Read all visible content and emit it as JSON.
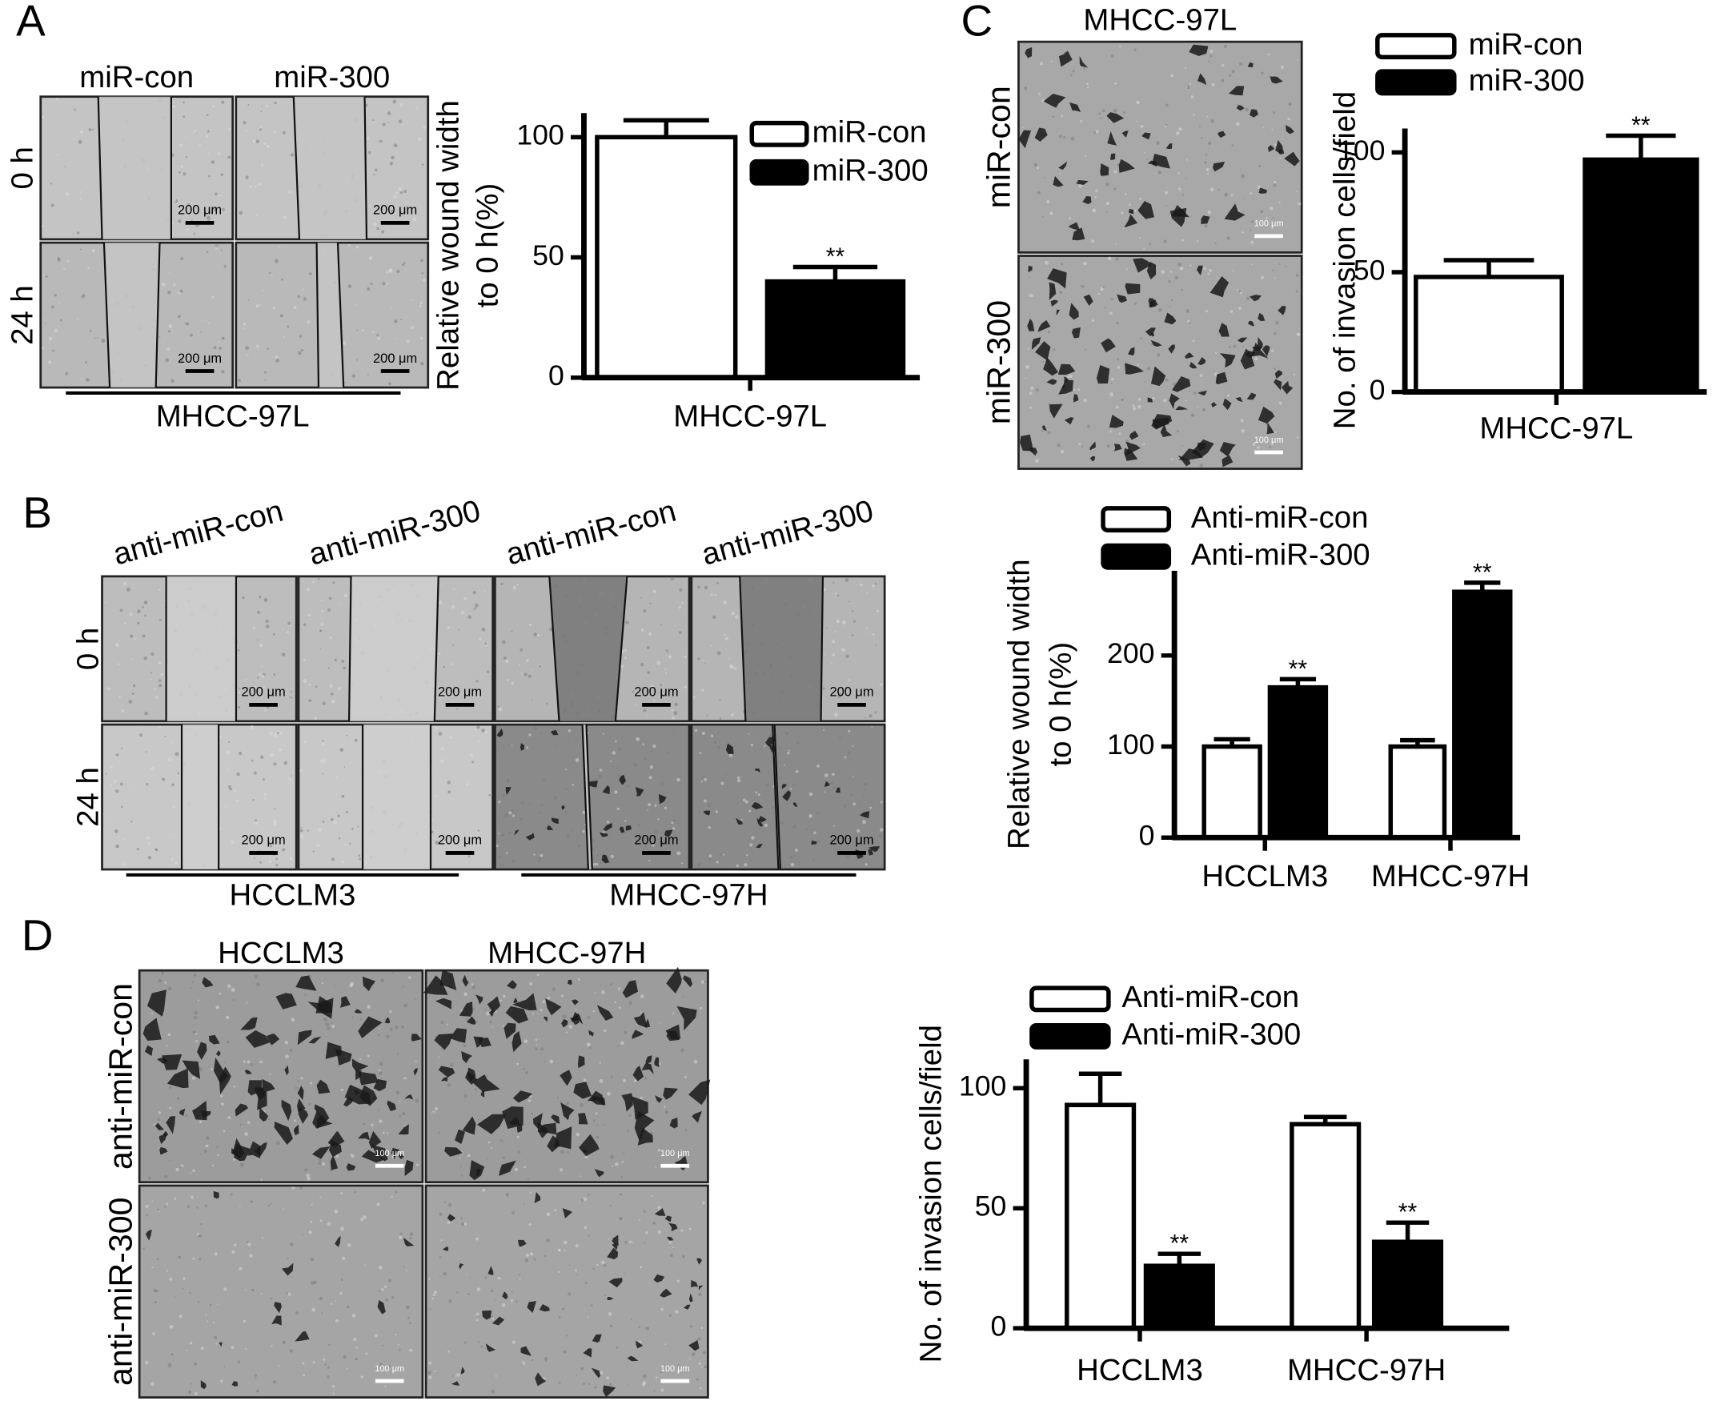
{
  "figure": {
    "panel_labels": [
      "A",
      "B",
      "C",
      "D"
    ],
    "A": {
      "columns": [
        "miR-con",
        "miR-300"
      ],
      "rows": [
        "0 h",
        "24 h"
      ],
      "cell_line": "MHCC-97L",
      "scale": "200 μm"
    },
    "B": {
      "columns": [
        "anti-miR-con",
        "anti-miR-300",
        "anti-miR-con",
        "anti-miR-300"
      ],
      "rows": [
        "0 h",
        "24 h"
      ],
      "cell_lines": [
        "HCCLM3",
        "MHCC-97H"
      ],
      "scale": "200 μm"
    },
    "C": {
      "title": "MHCC-97L",
      "rows": [
        "miR-con",
        "miR-300"
      ],
      "scale": "100 μm"
    },
    "D": {
      "columns": [
        "HCCLM3",
        "MHCC-97H"
      ],
      "rows": [
        "anti-miR-con",
        "anti-miR-300"
      ],
      "scale": "100 μm"
    }
  },
  "chart_data": [
    {
      "type": "bar",
      "ylabel": [
        "Relative wound width",
        "to 0 h(%)"
      ],
      "categories": [
        "MHCC-97L"
      ],
      "series": [
        {
          "name": "miR-con",
          "color": "#ffffff",
          "values": [
            100
          ],
          "errors": [
            7
          ]
        },
        {
          "name": "miR-300",
          "color": "#000000",
          "values": [
            40
          ],
          "errors": [
            6
          ],
          "annotations": [
            "**"
          ]
        }
      ],
      "ylim": [
        0,
        110
      ],
      "yticks": [
        0,
        50,
        100
      ]
    },
    {
      "type": "bar",
      "ylabel": [
        "No. of invasion cells/field"
      ],
      "categories": [
        "MHCC-97L"
      ],
      "series": [
        {
          "name": "miR-con",
          "color": "#ffffff",
          "values": [
            48
          ],
          "errors": [
            7
          ]
        },
        {
          "name": "miR-300",
          "color": "#000000",
          "values": [
            97
          ],
          "errors": [
            10
          ],
          "annotations": [
            "**"
          ]
        }
      ],
      "ylim": [
        0,
        110
      ],
      "yticks": [
        0,
        50,
        100
      ]
    },
    {
      "type": "bar",
      "ylabel": [
        "Relative wound width",
        "to 0 h(%)"
      ],
      "categories": [
        "HCCLM3",
        "MHCC-97H"
      ],
      "series": [
        {
          "name": "Anti-miR-con",
          "color": "#ffffff",
          "values": [
            100,
            100
          ],
          "errors": [
            8,
            7
          ]
        },
        {
          "name": "Anti-miR-300",
          "color": "#000000",
          "values": [
            165,
            270
          ],
          "errors": [
            9,
            10
          ],
          "annotations": [
            "**",
            "**"
          ]
        }
      ],
      "ylim": [
        0,
        293
      ],
      "yticks": [
        0,
        100,
        200
      ]
    },
    {
      "type": "bar",
      "ylabel": [
        "No. of invasion cells/field"
      ],
      "categories": [
        "HCCLM3",
        "MHCC-97H"
      ],
      "series": [
        {
          "name": "Anti-miR-con",
          "color": "#ffffff",
          "values": [
            93,
            85
          ],
          "errors": [
            13,
            3
          ]
        },
        {
          "name": "Anti-miR-300",
          "color": "#000000",
          "values": [
            26,
            36
          ],
          "errors": [
            5,
            8
          ],
          "annotations": [
            "**",
            "**"
          ]
        }
      ],
      "ylim": [
        0,
        112
      ],
      "yticks": [
        0,
        50,
        100
      ]
    }
  ]
}
